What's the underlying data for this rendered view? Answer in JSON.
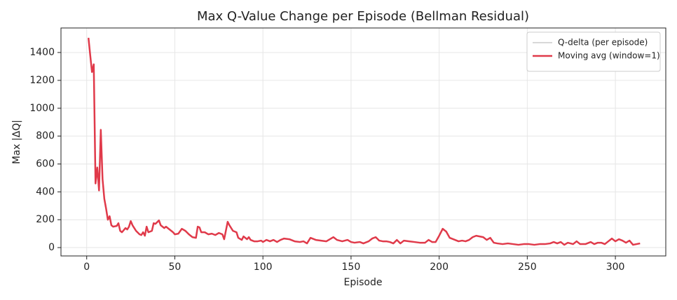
{
  "chart_data": {
    "type": "line",
    "title": "Max Q-Value Change per Episode (Bellman Residual)",
    "x_label": "Episode",
    "y_label": "Max |ΔQ|",
    "x": [
      1,
      2,
      3,
      4,
      5,
      6,
      7,
      8,
      9,
      10,
      11,
      12,
      13,
      14,
      15,
      17,
      18,
      19,
      20,
      22,
      23,
      24,
      25,
      26,
      28,
      30,
      31,
      32,
      33,
      34,
      35,
      37,
      38,
      39,
      41,
      42,
      44,
      45,
      47,
      49,
      50,
      52,
      54,
      56,
      58,
      60,
      62,
      63,
      64,
      65,
      67,
      69,
      71,
      73,
      75,
      77,
      78,
      80,
      81,
      83,
      85,
      86,
      88,
      89,
      91,
      92,
      93,
      95,
      97,
      99,
      100,
      102,
      104,
      106,
      108,
      110,
      112,
      115,
      118,
      121,
      123,
      125,
      127,
      130,
      133,
      136,
      138,
      140,
      142,
      145,
      148,
      150,
      152,
      155,
      157,
      160,
      162,
      164,
      166,
      168,
      170,
      172,
      174,
      176,
      178,
      180,
      183,
      186,
      189,
      192,
      194,
      196,
      198,
      200,
      202,
      204,
      206,
      209,
      211,
      213,
      215,
      217,
      219,
      221,
      223,
      225,
      227,
      229,
      231,
      233,
      236,
      239,
      242,
      245,
      248,
      251,
      254,
      257,
      260,
      263,
      265,
      267,
      269,
      271,
      273,
      276,
      278,
      280,
      283,
      286,
      288,
      290,
      292,
      294,
      296,
      298,
      300,
      302,
      304,
      306,
      308,
      310,
      312,
      314
    ],
    "series": [
      {
        "name": "Q-delta (per episode)",
        "color": "#b0b0b0",
        "width": 1,
        "values": [
          1505,
          1380,
          1260,
          1315,
          460,
          575,
          410,
          845,
          490,
          350,
          280,
          200,
          225,
          160,
          150,
          155,
          175,
          120,
          110,
          140,
          130,
          150,
          190,
          160,
          120,
          95,
          90,
          110,
          85,
          150,
          110,
          120,
          175,
          170,
          195,
          160,
          140,
          150,
          130,
          110,
          95,
          100,
          135,
          120,
          95,
          75,
          70,
          150,
          145,
          110,
          110,
          95,
          100,
          90,
          105,
          95,
          60,
          185,
          160,
          120,
          110,
          70,
          55,
          80,
          60,
          75,
          55,
          45,
          45,
          50,
          40,
          55,
          45,
          55,
          40,
          55,
          65,
          60,
          45,
          40,
          45,
          30,
          70,
          55,
          50,
          45,
          60,
          75,
          55,
          45,
          55,
          40,
          35,
          40,
          30,
          45,
          65,
          75,
          50,
          45,
          45,
          40,
          30,
          55,
          30,
          50,
          45,
          40,
          35,
          35,
          55,
          40,
          40,
          85,
          135,
          115,
          70,
          55,
          45,
          50,
          45,
          55,
          75,
          85,
          80,
          75,
          55,
          70,
          35,
          30,
          25,
          30,
          25,
          20,
          25,
          25,
          20,
          25,
          25,
          30,
          40,
          30,
          40,
          20,
          35,
          25,
          45,
          25,
          25,
          40,
          25,
          35,
          35,
          25,
          45,
          65,
          45,
          60,
          50,
          35,
          50,
          20,
          25,
          30
        ]
      },
      {
        "name": "Moving avg (window=1)",
        "color": "#e03a4a",
        "width": 2.5,
        "values": [
          1505,
          1380,
          1260,
          1315,
          460,
          575,
          410,
          845,
          490,
          350,
          280,
          200,
          225,
          160,
          150,
          155,
          175,
          120,
          110,
          140,
          130,
          150,
          190,
          160,
          120,
          95,
          90,
          110,
          85,
          150,
          110,
          120,
          175,
          170,
          195,
          160,
          140,
          150,
          130,
          110,
          95,
          100,
          135,
          120,
          95,
          75,
          70,
          150,
          145,
          110,
          110,
          95,
          100,
          90,
          105,
          95,
          60,
          185,
          160,
          120,
          110,
          70,
          55,
          80,
          60,
          75,
          55,
          45,
          45,
          50,
          40,
          55,
          45,
          55,
          40,
          55,
          65,
          60,
          45,
          40,
          45,
          30,
          70,
          55,
          50,
          45,
          60,
          75,
          55,
          45,
          55,
          40,
          35,
          40,
          30,
          45,
          65,
          75,
          50,
          45,
          45,
          40,
          30,
          55,
          30,
          50,
          45,
          40,
          35,
          35,
          55,
          40,
          40,
          85,
          135,
          115,
          70,
          55,
          45,
          50,
          45,
          55,
          75,
          85,
          80,
          75,
          55,
          70,
          35,
          30,
          25,
          30,
          25,
          20,
          25,
          25,
          20,
          25,
          25,
          30,
          40,
          30,
          40,
          20,
          35,
          25,
          45,
          25,
          25,
          40,
          25,
          35,
          35,
          25,
          45,
          65,
          45,
          60,
          50,
          35,
          50,
          20,
          25,
          30
        ]
      }
    ],
    "xlim": [
      -14.6,
      328.6
    ],
    "ylim": [
      -60,
      1576
    ],
    "xticks": [
      0,
      50,
      100,
      150,
      200,
      250,
      300
    ],
    "yticks": [
      0,
      200,
      400,
      600,
      800,
      1000,
      1200,
      1400
    ],
    "grid": true,
    "legend": "upper right"
  }
}
